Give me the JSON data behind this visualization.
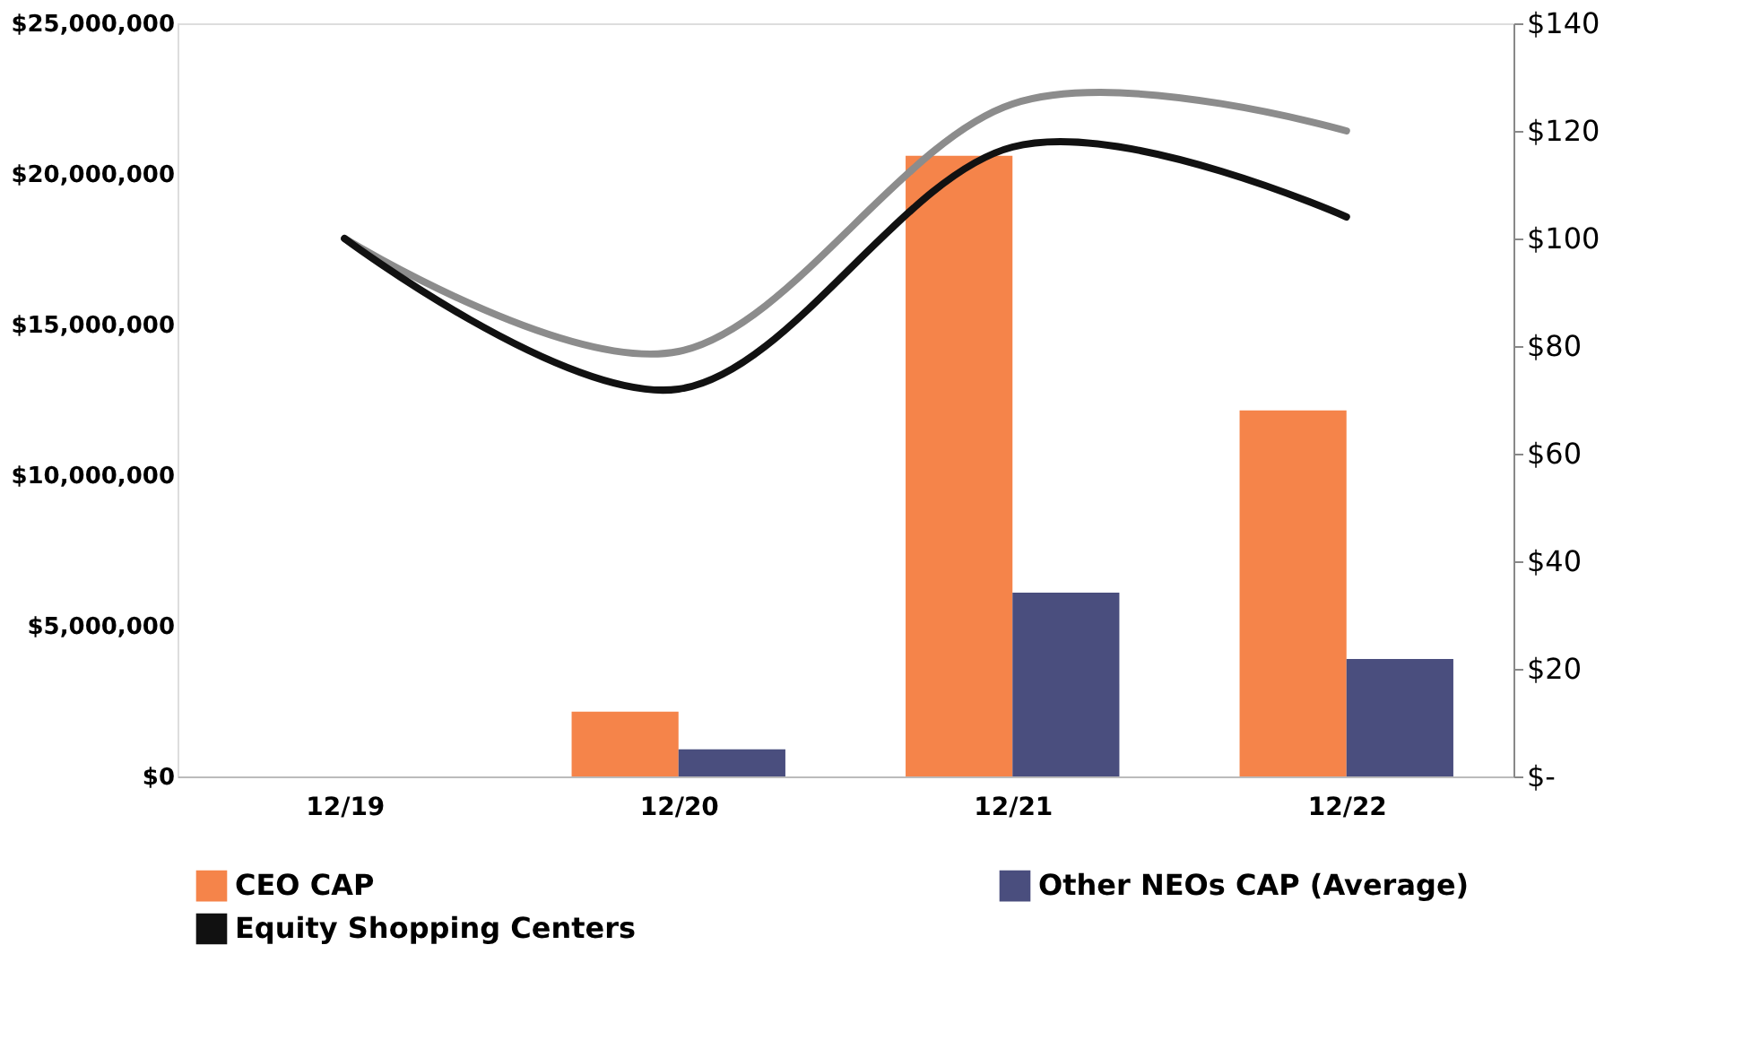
{
  "chart_data": {
    "type": "bar",
    "categories": [
      "12/19",
      "12/20",
      "12/21",
      "12/22"
    ],
    "series": [
      {
        "name": "CEO CAP",
        "color": "#f5844a",
        "values": [
          null,
          2150000,
          20600000,
          12150000
        ]
      },
      {
        "name": "Other NEOs CAP (Average)",
        "color": "#4a4e7e",
        "values": [
          null,
          900000,
          6100000,
          3900000
        ]
      },
      {
        "type": "line",
        "axis": "y2",
        "color": "#8c8c8c",
        "values": [
          100,
          79,
          125,
          120
        ]
      },
      {
        "type": "line",
        "axis": "y2",
        "name": "Equity Shopping Centers",
        "color": "#111111",
        "values": [
          100,
          72,
          117,
          104
        ]
      }
    ],
    "ylim": [
      0,
      25000000
    ],
    "yticks": [
      {
        "value": 0,
        "label": "$0"
      },
      {
        "value": 5000000,
        "label": "$5,000,000"
      },
      {
        "value": 10000000,
        "label": "$10,000,000"
      },
      {
        "value": 15000000,
        "label": "$15,000,000"
      },
      {
        "value": 20000000,
        "label": "$20,000,000"
      },
      {
        "value": 25000000,
        "label": "$25,000,000"
      }
    ],
    "y2lim": [
      0,
      140
    ],
    "y2ticks": [
      {
        "value": 0,
        "label": "$-"
      },
      {
        "value": 20,
        "label": "$20"
      },
      {
        "value": 40,
        "label": "$40"
      },
      {
        "value": 60,
        "label": "$60"
      },
      {
        "value": 80,
        "label": "$80"
      },
      {
        "value": 100,
        "label": "$100"
      },
      {
        "value": 120,
        "label": "$120"
      },
      {
        "value": 140,
        "label": "$140"
      }
    ],
    "grid": false,
    "legend": "bottom"
  }
}
